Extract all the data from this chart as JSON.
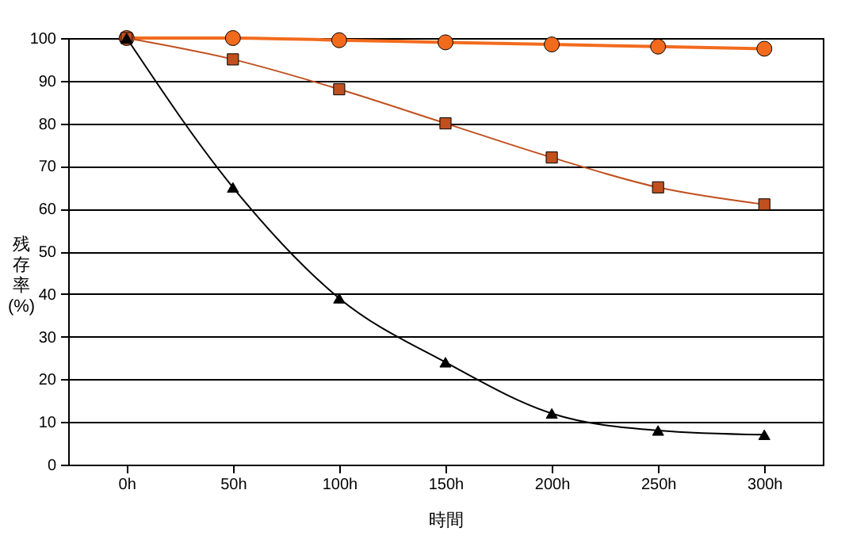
{
  "chart_data": {
    "type": "line",
    "xlabel": "時間",
    "ylabel": "残存率(%)",
    "categories": [
      "0h",
      "50h",
      "100h",
      "150h",
      "200h",
      "250h",
      "300h"
    ],
    "series": [
      {
        "color": "#f26b1d",
        "marker": "circle",
        "values": [
          100,
          100,
          99.5,
          99,
          98.5,
          98,
          97.5
        ]
      },
      {
        "color": "#c0501e",
        "marker": "square",
        "values": [
          100,
          95,
          88,
          80,
          72,
          65,
          61
        ]
      },
      {
        "color": "#000000",
        "marker": "triangle",
        "values": [
          100,
          65,
          39,
          24,
          12,
          8,
          7
        ]
      }
    ],
    "ylim": [
      0,
      100
    ],
    "yticks": [
      0,
      10,
      20,
      30,
      40,
      50,
      60,
      70,
      80,
      90,
      100
    ],
    "grid": "y"
  }
}
